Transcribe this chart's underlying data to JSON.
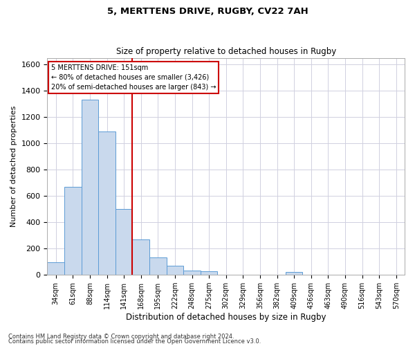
{
  "title1": "5, MERTTENS DRIVE, RUGBY, CV22 7AH",
  "title2": "Size of property relative to detached houses in Rugby",
  "xlabel": "Distribution of detached houses by size in Rugby",
  "ylabel": "Number of detached properties",
  "categories": [
    "34sqm",
    "61sqm",
    "88sqm",
    "114sqm",
    "141sqm",
    "168sqm",
    "195sqm",
    "222sqm",
    "248sqm",
    "275sqm",
    "302sqm",
    "329sqm",
    "356sqm",
    "382sqm",
    "409sqm",
    "436sqm",
    "463sqm",
    "490sqm",
    "516sqm",
    "543sqm",
    "570sqm"
  ],
  "values": [
    95,
    670,
    1330,
    1090,
    500,
    270,
    135,
    70,
    35,
    30,
    0,
    0,
    0,
    0,
    20,
    0,
    0,
    0,
    0,
    0,
    0
  ],
  "bar_color": "#c9d9ed",
  "bar_edge_color": "#5b9bd5",
  "grid_color": "#d0d0e0",
  "property_line_x": 4.5,
  "annotation_line1": "5 MERTTENS DRIVE: 151sqm",
  "annotation_line2": "← 80% of detached houses are smaller (3,426)",
  "annotation_line3": "20% of semi-detached houses are larger (843) →",
  "annotation_box_color": "#ffffff",
  "annotation_box_edge": "#cc0000",
  "property_line_color": "#cc0000",
  "ylim": [
    0,
    1650
  ],
  "yticks": [
    0,
    200,
    400,
    600,
    800,
    1000,
    1200,
    1400,
    1600
  ],
  "footer1": "Contains HM Land Registry data © Crown copyright and database right 2024.",
  "footer2": "Contains public sector information licensed under the Open Government Licence v3.0."
}
